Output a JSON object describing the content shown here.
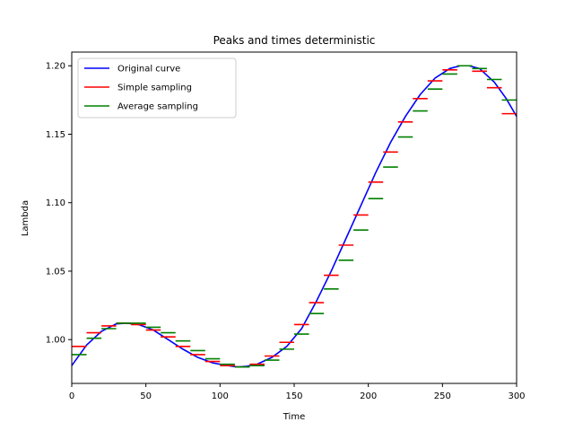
{
  "chart_data": {
    "type": "line",
    "title": "Peaks and times deterministic",
    "xlabel": "Time",
    "ylabel": "Lambda",
    "xlim": [
      0,
      300
    ],
    "ylim": [
      0.968,
      1.21
    ],
    "xticks": [
      "0",
      "50",
      "100",
      "150",
      "200",
      "250",
      "300"
    ],
    "yticks": [
      "1.00",
      "1.05",
      "1.10",
      "1.15",
      "1.20"
    ],
    "grid": false,
    "legend_placement": "top-left",
    "sampling_interval": 10,
    "series": [
      {
        "name": "Original curve",
        "kind": "line",
        "color": "#0000ff",
        "x": [
          0,
          10,
          20,
          30,
          37,
          45,
          55,
          65,
          75,
          85,
          95,
          105,
          112,
          118,
          125,
          135,
          145,
          155,
          165,
          175,
          185,
          195,
          205,
          215,
          225,
          235,
          245,
          255,
          262,
          268,
          275,
          285,
          293,
          300
        ],
        "y": [
          0.981,
          0.996,
          1.006,
          1.0115,
          1.012,
          1.011,
          1.007,
          1.0,
          0.993,
          0.987,
          0.983,
          0.981,
          0.98,
          0.9805,
          0.982,
          0.987,
          0.995,
          1.008,
          1.028,
          1.05,
          1.074,
          1.098,
          1.122,
          1.144,
          1.163,
          1.179,
          1.191,
          1.198,
          1.2,
          1.2,
          1.198,
          1.188,
          1.176,
          1.163
        ]
      },
      {
        "name": "Simple sampling",
        "kind": "step",
        "color": "#ff0000",
        "values": [
          0.995,
          1.005,
          1.01,
          1.012,
          1.011,
          1.007,
          1.002,
          0.995,
          0.989,
          0.984,
          0.981,
          0.98,
          0.982,
          0.988,
          0.998,
          1.011,
          1.027,
          1.047,
          1.069,
          1.091,
          1.115,
          1.137,
          1.159,
          1.176,
          1.189,
          1.197,
          1.2,
          1.196,
          1.184,
          1.165
        ]
      },
      {
        "name": "Average sampling",
        "kind": "step",
        "color": "#008000",
        "values": [
          0.989,
          1.001,
          1.008,
          1.012,
          1.012,
          1.009,
          1.005,
          0.999,
          0.992,
          0.986,
          0.982,
          0.98,
          0.981,
          0.985,
          0.993,
          1.004,
          1.019,
          1.037,
          1.058,
          1.08,
          1.103,
          1.126,
          1.148,
          1.167,
          1.183,
          1.194,
          1.2,
          1.198,
          1.19,
          1.175
        ]
      }
    ]
  }
}
